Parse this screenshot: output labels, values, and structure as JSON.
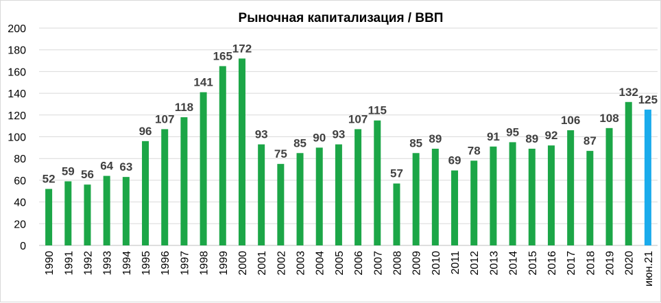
{
  "chart_data": {
    "type": "bar",
    "title": "Рыночная  капитализация / ВВП",
    "categories": [
      "1990",
      "1991",
      "1992",
      "1993",
      "1994",
      "1995",
      "1996",
      "1997",
      "1998",
      "1999",
      "2000",
      "2001",
      "2002",
      "2003",
      "2004",
      "2005",
      "2006",
      "2007",
      "2008",
      "2009",
      "2010",
      "2011",
      "2012",
      "2013",
      "2014",
      "2015",
      "2016",
      "2017",
      "2018",
      "2019",
      "2020",
      "июн.21"
    ],
    "values": [
      52,
      59,
      56,
      64,
      63,
      96,
      107,
      118,
      141,
      165,
      172,
      93,
      75,
      85,
      90,
      93,
      107,
      115,
      57,
      85,
      89,
      69,
      78,
      91,
      95,
      89,
      92,
      106,
      87,
      108,
      132,
      125
    ],
    "yticks": [
      "0",
      "20",
      "40",
      "60",
      "80",
      "100",
      "120",
      "140",
      "160",
      "180",
      "200"
    ],
    "ylim": [
      0,
      200
    ],
    "grid": true,
    "legend": "none",
    "colors": {
      "bar": "#1ca647",
      "highlight": "#1aabec",
      "grid": "#d9d9d9",
      "label": "#404040"
    },
    "highlight_index": 31
  }
}
